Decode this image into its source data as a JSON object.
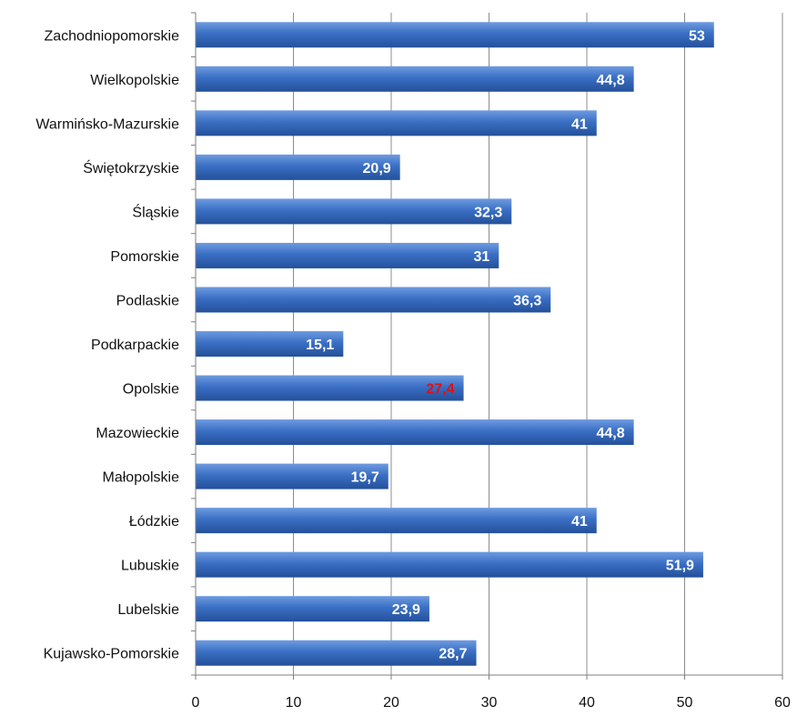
{
  "chart_data": {
    "type": "bar",
    "orientation": "horizontal",
    "categories": [
      "Zachodniopomorskie",
      "Wielkopolskie",
      "Warmińsko-Mazurskie",
      "Świętokrzyskie",
      "Śląskie",
      "Pomorskie",
      "Podlaskie",
      "Podkarpackie",
      "Opolskie",
      "Mazowieckie",
      "Małopolskie",
      "Łódzkie",
      "Lubuskie",
      "Lubelskie",
      "Kujawsko-Pomorskie"
    ],
    "values": [
      53,
      44.8,
      41,
      20.9,
      32.3,
      31,
      36.3,
      15.1,
      27.4,
      44.8,
      19.7,
      41,
      51.9,
      23.9,
      28.7
    ],
    "value_labels": [
      "53",
      "44,8",
      "41",
      "20,9",
      "32,3",
      "31",
      "36,3",
      "15,1",
      "27,4",
      "44,8",
      "19,7",
      "41",
      "51,9",
      "23,9",
      "28,7"
    ],
    "highlight_index": 8,
    "xlim": [
      0,
      60
    ],
    "xticks": [
      0,
      10,
      20,
      30,
      40,
      50,
      60
    ],
    "xtick_labels": [
      "0",
      "10",
      "20",
      "30",
      "40",
      "50",
      "60"
    ],
    "grid": "vertical",
    "title": "",
    "xlabel": "",
    "ylabel": "",
    "colors": {
      "bar": "#3a6fc4",
      "bar_top": "#6f9be0",
      "bar_bottom": "#24509a",
      "label": "#ffffff",
      "highlight_label": "#e01010",
      "grid": "#8c8c8c",
      "axis": "#7f7f7f"
    }
  }
}
